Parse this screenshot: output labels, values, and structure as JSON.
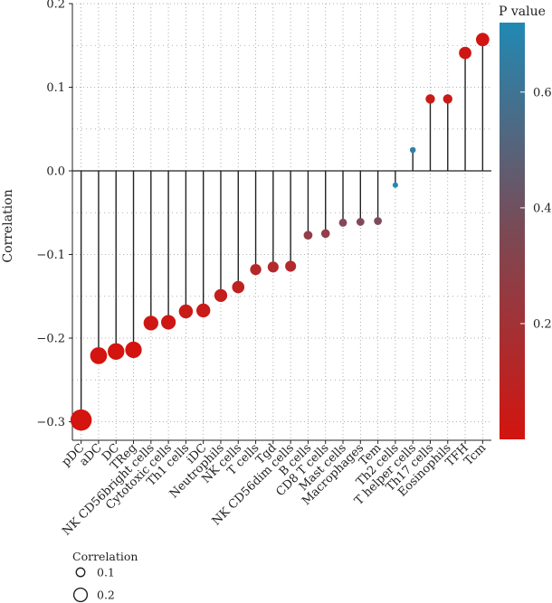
{
  "chart_data": {
    "type": "lollipop",
    "ylabel": "Correlation",
    "ylim": [
      -0.32,
      0.2
    ],
    "yticks": [
      -0.3,
      -0.2,
      -0.1,
      0.0,
      0.1,
      0.2
    ],
    "ytick_labels": [
      "−0.3",
      "−0.2",
      "−0.1",
      "0.0",
      "0.1",
      "0.2"
    ],
    "grid": "dotted",
    "categories": [
      "pDC",
      "aDC",
      "DC",
      "TReg",
      "NK CD56bright cells",
      "Cytotoxic cells",
      "Th1 cells",
      "iDC",
      "Neutrophils",
      "NK cells",
      "T cells",
      "Tgd",
      "NK CD56dim cells",
      "B cells",
      "CD8 T cells",
      "Mast cells",
      "Macrophages",
      "Tem",
      "Th2 cells",
      "T helper cells",
      "Th17 cells",
      "Eosinophils",
      "TFH",
      "Tcm"
    ],
    "values": [
      -0.298,
      -0.221,
      -0.216,
      -0.214,
      -0.182,
      -0.181,
      -0.168,
      -0.167,
      -0.149,
      -0.139,
      -0.118,
      -0.115,
      -0.114,
      -0.077,
      -0.075,
      -0.062,
      -0.061,
      -0.06,
      -0.017,
      0.025,
      0.086,
      0.086,
      0.141,
      0.157
    ],
    "p_values": [
      0.0,
      0.0,
      0.0,
      0.0,
      0.02,
      0.02,
      0.04,
      0.04,
      0.06,
      0.08,
      0.12,
      0.13,
      0.13,
      0.25,
      0.26,
      0.32,
      0.33,
      0.34,
      0.78,
      0.65,
      0.04,
      0.04,
      0.02,
      0.01
    ],
    "colorbar": {
      "title": "P value",
      "ticks": [
        0.2,
        0.4,
        0.6
      ],
      "tick_labels": [
        "0.2",
        "0.4",
        "0.6"
      ],
      "range": [
        0.0,
        0.72
      ],
      "low_color": "#d3140f",
      "high_color": "#2189b3"
    },
    "size_legend": {
      "title": "Correlation",
      "items": [
        {
          "label": "0.1",
          "value": 0.1
        },
        {
          "label": "0.2",
          "value": 0.2
        }
      ]
    }
  }
}
